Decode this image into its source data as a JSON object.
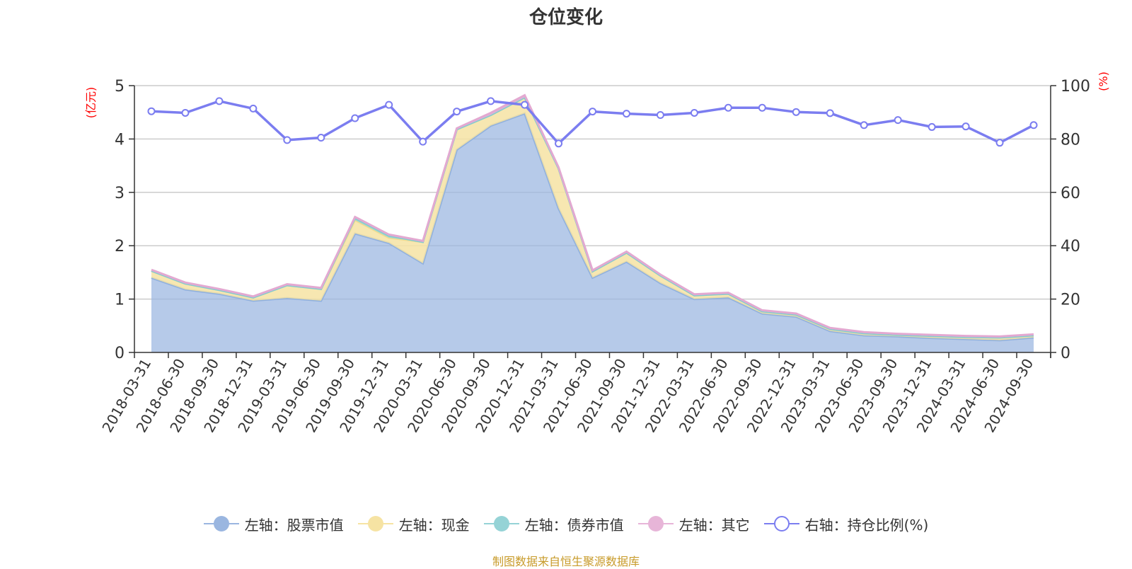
{
  "chart_data": {
    "type": "area",
    "title": "仓位变化",
    "left_axis": {
      "label": "(亿元)",
      "ylim": [
        0,
        5
      ],
      "ticks": [
        0,
        1,
        2,
        3,
        4,
        5
      ]
    },
    "right_axis": {
      "label": "(%)",
      "ylim": [
        0,
        100
      ],
      "ticks": [
        0,
        20,
        40,
        60,
        80,
        100
      ]
    },
    "categories": [
      "2018-03-31",
      "2018-06-30",
      "2018-09-30",
      "2018-12-31",
      "2019-03-31",
      "2019-06-30",
      "2019-09-30",
      "2019-12-31",
      "2020-03-31",
      "2020-06-30",
      "2020-09-30",
      "2020-12-31",
      "2021-03-31",
      "2021-06-30",
      "2021-09-30",
      "2021-12-31",
      "2022-03-31",
      "2022-06-30",
      "2022-09-30",
      "2022-12-31",
      "2023-03-31",
      "2023-06-30",
      "2023-09-30",
      "2023-12-31",
      "2024-03-31",
      "2024-06-30",
      "2024-09-30"
    ],
    "series": [
      {
        "name": "左轴：股票市值",
        "axis": "left",
        "color": "#9ab6e0",
        "values": [
          1.4,
          1.18,
          1.1,
          0.97,
          1.02,
          0.97,
          2.23,
          2.05,
          1.67,
          3.8,
          4.25,
          4.48,
          2.7,
          1.4,
          1.7,
          1.3,
          1.0,
          1.03,
          0.73,
          0.67,
          0.4,
          0.32,
          0.3,
          0.27,
          0.25,
          0.23,
          0.28
        ]
      },
      {
        "name": "左轴：现金",
        "axis": "left",
        "color": "#f6e3a3",
        "values": [
          0.13,
          0.11,
          0.07,
          0.06,
          0.24,
          0.22,
          0.25,
          0.1,
          0.4,
          0.38,
          0.2,
          0.3,
          0.75,
          0.12,
          0.17,
          0.14,
          0.07,
          0.07,
          0.04,
          0.04,
          0.04,
          0.04,
          0.03,
          0.04,
          0.04,
          0.05,
          0.04
        ]
      },
      {
        "name": "左轴：债券市值",
        "axis": "left",
        "color": "#95d3d6",
        "values": [
          0,
          0,
          0,
          0,
          0,
          0,
          0.04,
          0.04,
          0,
          0,
          0,
          0,
          0,
          0,
          0,
          0,
          0,
          0,
          0,
          0,
          0,
          0,
          0,
          0,
          0,
          0,
          0
        ]
      },
      {
        "name": "左轴：其它",
        "axis": "left",
        "color": "#e7b5d8",
        "values": [
          0.02,
          0.02,
          0.02,
          0.02,
          0.02,
          0.02,
          0.02,
          0.02,
          0.02,
          0.02,
          0.04,
          0.04,
          0.02,
          0.02,
          0.02,
          0.02,
          0.02,
          0.02,
          0.02,
          0.02,
          0.02,
          0.02,
          0.02,
          0.02,
          0.02,
          0.02,
          0.02
        ]
      },
      {
        "name": "右轴：持仓比例(%)",
        "axis": "right",
        "color": "#7b7df0",
        "type": "line",
        "values": [
          90.4,
          89.8,
          94.2,
          91.4,
          79.6,
          80.5,
          87.8,
          92.8,
          79.0,
          90.3,
          94.2,
          92.8,
          78.3,
          90.3,
          89.5,
          89.0,
          89.8,
          91.7,
          91.7,
          90.1,
          89.7,
          85.2,
          87.1,
          84.5,
          84.7,
          78.6,
          85.2
        ]
      }
    ],
    "legend_position": "bottom",
    "grid": true
  },
  "legend": [
    {
      "label": "左轴：股票市值",
      "color": "#9ab6e0",
      "style": "filled"
    },
    {
      "label": "左轴：现金",
      "color": "#f6e3a3",
      "style": "filled"
    },
    {
      "label": "左轴：债券市值",
      "color": "#95d3d6",
      "style": "filled"
    },
    {
      "label": "左轴：其它",
      "color": "#e7b5d8",
      "style": "filled"
    },
    {
      "label": "右轴：持仓比例(%)",
      "color": "#7b7df0",
      "style": "hollow"
    }
  ],
  "source": "制图数据来自恒生聚源数据库"
}
